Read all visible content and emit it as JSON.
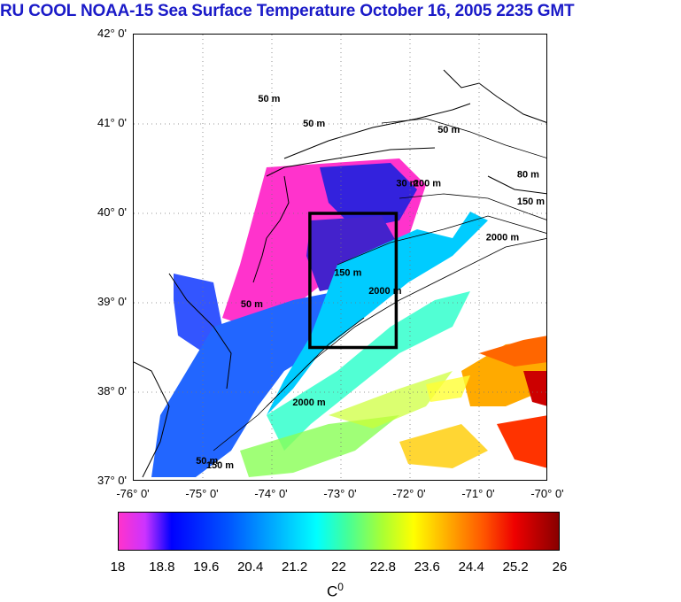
{
  "title": "RU COOL  NOAA-15 Sea Surface Temperature October 16, 2005 2235 GMT",
  "map": {
    "lat_labels": [
      "42° 0'",
      "41° 0'",
      "40° 0'",
      "39° 0'",
      "38° 0'",
      "37° 0'"
    ],
    "lon_labels": [
      "-76° 0'",
      "-75° 0'",
      "-74° 0'",
      "-73° 0'",
      "-72° 0'",
      "-71° 0'",
      "-70° 0'"
    ],
    "lat_range": [
      37,
      42
    ],
    "lon_range": [
      -76,
      -70
    ],
    "grid": "dotted",
    "study_box": {
      "lon": [
        -73.45,
        -72.2
      ],
      "lat": [
        38.5,
        40.0
      ]
    },
    "contour_labels": [
      {
        "text": "50 m",
        "lon": -74.2,
        "lat": 41.25
      },
      {
        "text": "50 m",
        "lon": -73.55,
        "lat": 40.97
      },
      {
        "text": "50 m",
        "lon": -71.6,
        "lat": 40.9
      },
      {
        "text": "30 m",
        "lon": -72.2,
        "lat": 40.3
      },
      {
        "text": "200 m",
        "lon": -71.95,
        "lat": 40.3
      },
      {
        "text": "80 m",
        "lon": -70.45,
        "lat": 40.4
      },
      {
        "text": "150 m",
        "lon": -70.45,
        "lat": 40.1
      },
      {
        "text": "2000 m",
        "lon": -70.9,
        "lat": 39.7
      },
      {
        "text": "2000 m",
        "lon": -72.6,
        "lat": 39.1
      },
      {
        "text": "150 m",
        "lon": -73.1,
        "lat": 39.3
      },
      {
        "text": "50 m",
        "lon": -74.45,
        "lat": 38.95
      },
      {
        "text": "2000 m",
        "lon": -73.7,
        "lat": 37.85
      },
      {
        "text": "50 m",
        "lon": -75.1,
        "lat": 37.2
      },
      {
        "text": "150 m",
        "lon": -74.95,
        "lat": 37.15
      }
    ]
  },
  "colorbar": {
    "labels": [
      "18",
      "18.8",
      "19.6",
      "20.4",
      "21.2",
      "22",
      "22.8",
      "23.6",
      "24.4",
      "25.2",
      "26"
    ],
    "min": 18,
    "max": 26,
    "units_base": "C",
    "units_sup": "0",
    "colors": [
      "#ff33cc",
      "#0000ff",
      "#00ffff",
      "#ffff00",
      "#880000"
    ]
  }
}
